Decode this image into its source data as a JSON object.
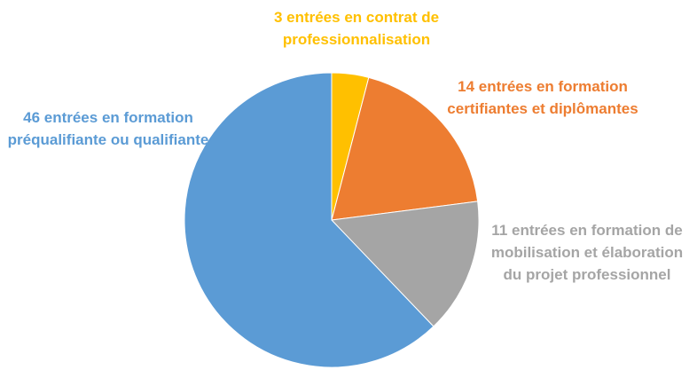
{
  "chart_data": {
    "type": "pie",
    "categories": [
      "3 entrées en contrat de professionnalisation",
      "14 entrées en formation certifiantes et diplômantes",
      "11 entrées en formation de mobilisation et élaboration du projet professionnel",
      "46 entrées en formation préqualifiante ou qualifiante"
    ],
    "values": [
      3,
      14,
      11,
      46
    ],
    "colors": [
      "#FFC000",
      "#ED7D31",
      "#A5A5A5",
      "#5B9BD5"
    ]
  }
}
